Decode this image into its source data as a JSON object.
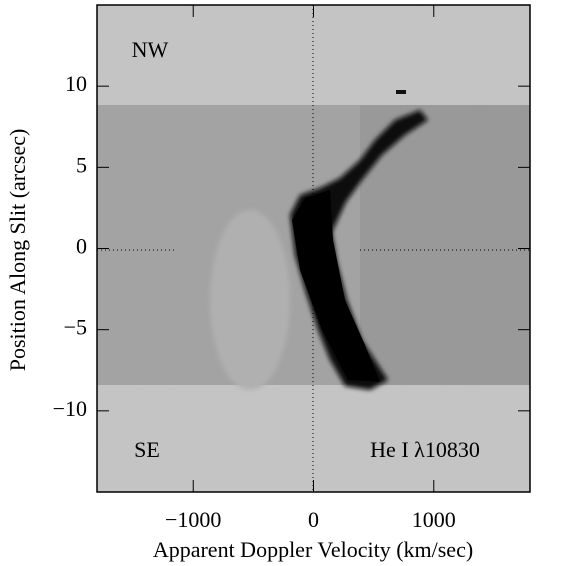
{
  "chart_data": {
    "type": "image",
    "xlabel": "Apparent Doppler Velocity (km/sec)",
    "ylabel": "Position Along Slit (arcsec)",
    "xlim": [
      -1800,
      1800
    ],
    "ylim": [
      -15,
      15
    ],
    "xticks": [
      {
        "value": -1000,
        "label": "−1000"
      },
      0,
      1000
    ],
    "yticks": [
      {
        "value": -10,
        "label": "−10"
      },
      {
        "value": -5,
        "label": "−5"
      },
      0,
      5,
      10
    ],
    "annotations": [
      "NW",
      "SE",
      "He I λ10830"
    ]
  }
}
